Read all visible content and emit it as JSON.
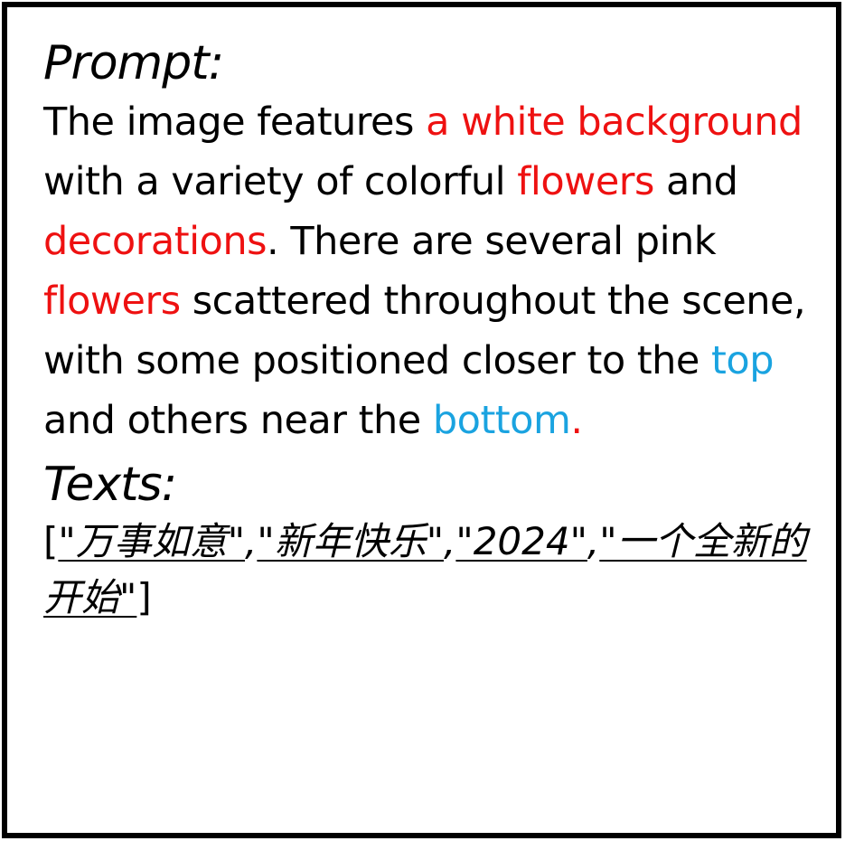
{
  "prompt_heading": "Prompt:",
  "prompt_segments": [
    {
      "text": "The image features ",
      "color": "black"
    },
    {
      "text": "a white background",
      "color": "red"
    },
    {
      "text": " with a variety of colorful ",
      "color": "black"
    },
    {
      "text": "flowers",
      "color": "red"
    },
    {
      "text": " and ",
      "color": "black"
    },
    {
      "text": "decorations",
      "color": "red"
    },
    {
      "text": ". There are several pink ",
      "color": "black"
    },
    {
      "text": "flowers",
      "color": "red"
    },
    {
      "text": " scattered throughout the scene, with some positioned closer to the ",
      "color": "black"
    },
    {
      "text": "top",
      "color": "blue"
    },
    {
      "text": " and others near the ",
      "color": "black"
    },
    {
      "text": "bottom",
      "color": "blue"
    },
    {
      "text": ".",
      "color": "red"
    }
  ],
  "texts_heading": "Texts:",
  "texts_open_bracket": "[",
  "texts_items": [
    "\"万事如意\"",
    "\"新年快乐\"",
    "\"2024\"",
    "\"一个全新的开始\""
  ],
  "texts_separator": ",",
  "texts_close_bracket": "]",
  "colors": {
    "red": "#ee1111",
    "blue": "#1aa3e0",
    "black": "#000000",
    "border": "#000000"
  }
}
